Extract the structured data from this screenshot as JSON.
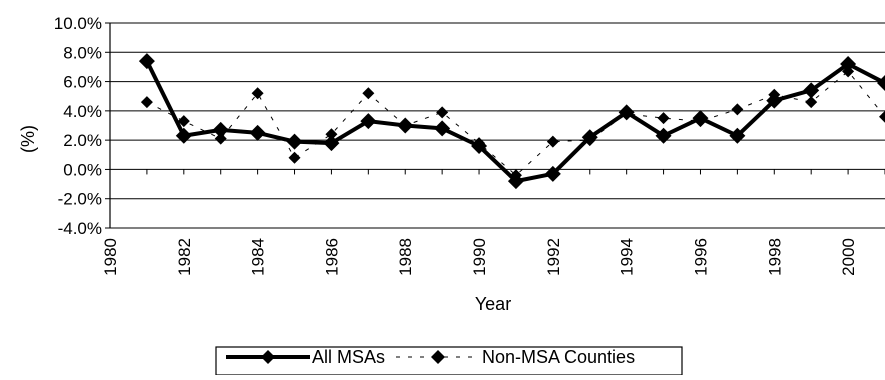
{
  "chart_data": {
    "type": "line",
    "title": "",
    "xlabel": "Year",
    "ylabel": "(%)",
    "xlim": [
      1980,
      2001
    ],
    "ylim": [
      -4.0,
      10.0
    ],
    "x_ticks": [
      1980,
      1982,
      1984,
      1986,
      1988,
      1990,
      1992,
      1994,
      1996,
      1998,
      2000
    ],
    "x_tick_labels": [
      "1980",
      "1982",
      "1984",
      "1986",
      "1988",
      "1990",
      "1992",
      "1994",
      "1996",
      "1998",
      "2000"
    ],
    "y_ticks": [
      -4.0,
      -2.0,
      0.0,
      2.0,
      4.0,
      6.0,
      8.0,
      10.0
    ],
    "y_tick_labels": [
      "-4.0%",
      "-2.0%",
      "0.0%",
      "2.0%",
      "4.0%",
      "6.0%",
      "8.0%",
      "10.0%"
    ],
    "grid": "horizontal",
    "legend_position": "bottom",
    "series": [
      {
        "name": "All MSAs",
        "style": "solid",
        "x": [
          1981,
          1982,
          1983,
          1984,
          1985,
          1986,
          1987,
          1988,
          1989,
          1990,
          1991,
          1992,
          1993,
          1994,
          1995,
          1996,
          1997,
          1998,
          1999,
          2000,
          2001
        ],
        "y": [
          7.4,
          2.3,
          2.7,
          2.5,
          1.9,
          1.8,
          3.3,
          3.0,
          2.8,
          1.6,
          -0.8,
          -0.3,
          2.2,
          3.9,
          2.3,
          3.5,
          2.3,
          4.7,
          5.4,
          7.2,
          5.9
        ]
      },
      {
        "name": "Non-MSA Counties",
        "style": "dashed",
        "x": [
          1981,
          1982,
          1983,
          1984,
          1985,
          1986,
          1987,
          1988,
          1989,
          1990,
          1991,
          1992,
          1993,
          1994,
          1995,
          1996,
          1997,
          1998,
          1999,
          2000,
          2001
        ],
        "y": [
          4.6,
          3.3,
          2.1,
          5.2,
          0.8,
          2.4,
          5.2,
          3.0,
          3.9,
          1.8,
          -0.4,
          1.9,
          2.0,
          3.8,
          3.5,
          3.3,
          4.1,
          5.1,
          4.6,
          6.7,
          3.6
        ]
      }
    ],
    "colors": {
      "all_msas": "#000000",
      "non_msa": "#000000",
      "grid": "#000000"
    }
  }
}
